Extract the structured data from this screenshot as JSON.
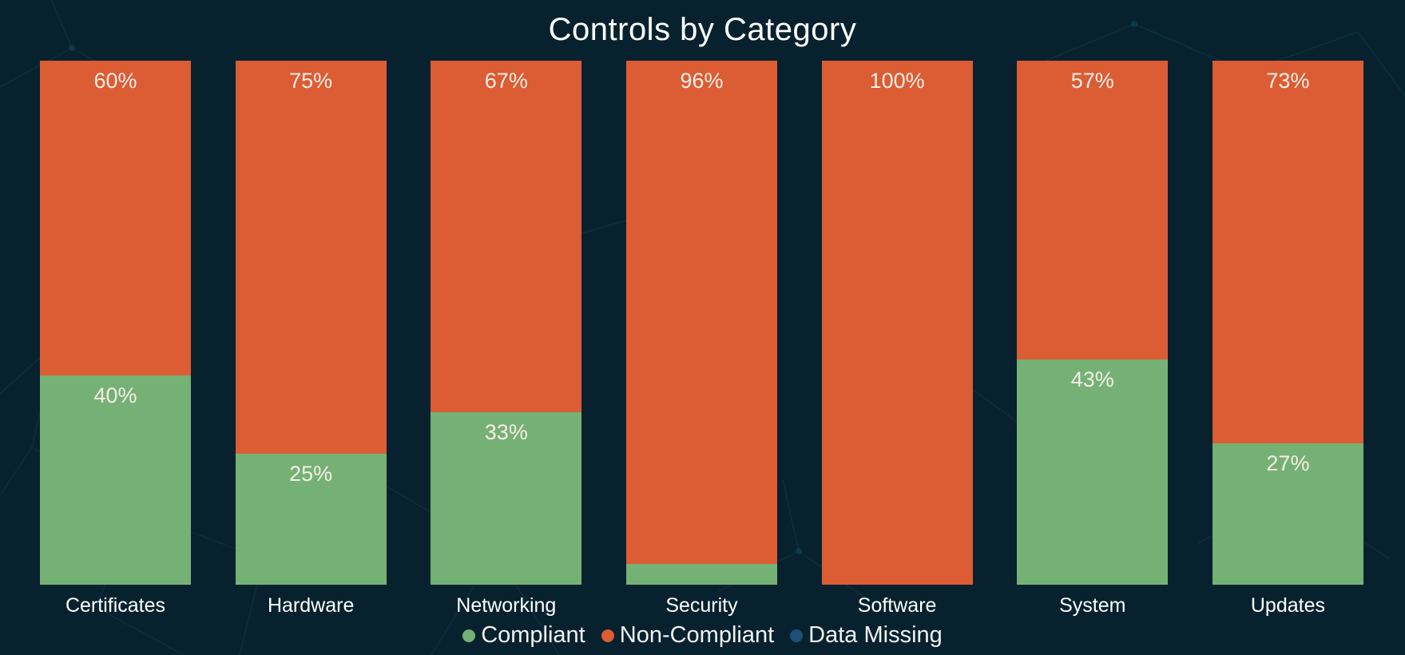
{
  "chart": {
    "title": "Controls by Category"
  },
  "colors": {
    "background": "#07222e",
    "compliant_green": "#75b175",
    "non_compliant_orange": "#dc5c34",
    "data_missing_blue": "#1f4e79",
    "title_text": "#ffffff",
    "value_label_text": "#f5efe7"
  },
  "chart_data": {
    "type": "bar",
    "variant": "100% stacked column",
    "title": "Controls by Category",
    "categories": [
      "Certificates",
      "Hardware",
      "Networking",
      "Security",
      "Software",
      "System",
      "Updates"
    ],
    "series": [
      {
        "name": "Compliant",
        "color": "#75b175",
        "values": [
          40,
          25,
          33,
          4,
          0,
          43,
          27
        ],
        "labels": [
          "40%",
          "25%",
          "33%",
          "",
          "",
          "43%",
          "27%"
        ]
      },
      {
        "name": "Non-Compliant",
        "color": "#dc5c34",
        "values": [
          60,
          75,
          67,
          96,
          100,
          57,
          73
        ],
        "labels": [
          "60%",
          "75%",
          "67%",
          "96%",
          "100%",
          "57%",
          "73%"
        ]
      }
    ],
    "legend": [
      {
        "name": "Compliant",
        "color": "#75b175"
      },
      {
        "name": "Non-Compliant",
        "color": "#dc5c34"
      },
      {
        "name": "Data Missing",
        "color": "#1f4e79"
      }
    ],
    "ylim": [
      0,
      100
    ],
    "y_axis_hidden": true,
    "grid": false,
    "legend_position": "bottom",
    "value_label_rule": "inside-end; hidden for very small segments"
  }
}
